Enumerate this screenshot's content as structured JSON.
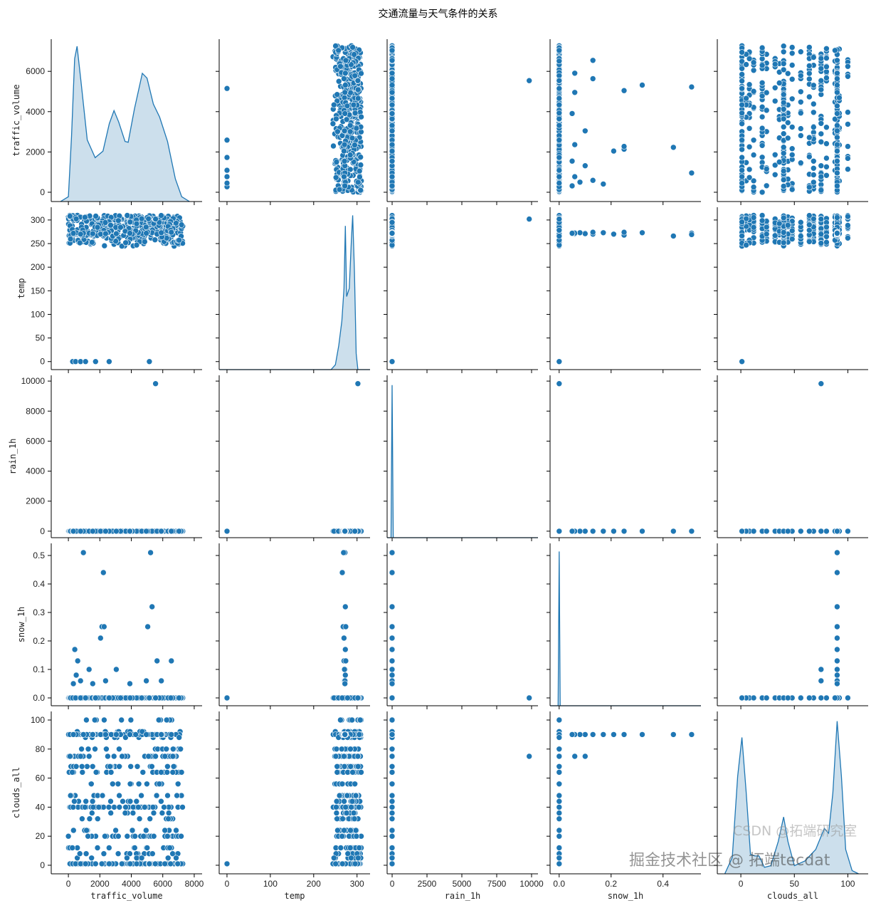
{
  "chart_data": {
    "type": "scatter",
    "title": "交通流量与天气条件的关系",
    "kind": "pairplot",
    "color": "#1f77b4",
    "kde_fill": "#c6dbea",
    "variables": [
      {
        "name": "traffic_volume",
        "lim": [
          -1090,
          8500
        ],
        "ylim": [
          -461,
          7597
        ],
        "xticks": [
          0,
          2000,
          4000,
          6000,
          8000
        ],
        "yticks": [
          0,
          2000,
          4000,
          6000
        ],
        "xtick_labels": [
          "0",
          "2000",
          "4000",
          "6000",
          "8000"
        ],
        "ytick_labels": [
          "0",
          "2000",
          "4000",
          "6000"
        ]
      },
      {
        "name": "temp",
        "lim": [
          -18,
          330
        ],
        "ylim": [
          -17,
          327
        ],
        "xticks": [
          0,
          100,
          200,
          300
        ],
        "yticks": [
          0,
          50,
          100,
          150,
          200,
          250,
          300
        ],
        "xtick_labels": [
          "0",
          "100",
          "200",
          "300"
        ],
        "ytick_labels": [
          "0",
          "50",
          "100",
          "150",
          "200",
          "250",
          "300"
        ]
      },
      {
        "name": "rain_1h",
        "lim": [
          -359,
          10460
        ],
        "ylim": [
          -433,
          10385
        ],
        "xticks": [
          0,
          2500,
          5000,
          7500,
          10000
        ],
        "yticks": [
          0,
          2000,
          4000,
          6000,
          8000,
          10000
        ],
        "xtick_labels": [
          "0",
          "2500",
          "5000",
          "7500",
          "10000"
        ],
        "ytick_labels": [
          "0",
          "2000",
          "4000",
          "6000",
          "8000",
          "10000"
        ]
      },
      {
        "name": "snow_1h",
        "lim": [
          -0.035,
          0.546
        ],
        "ylim": [
          -0.0275,
          0.5425
        ],
        "xticks": [
          0,
          0.2,
          0.4
        ],
        "yticks": [
          0,
          0.1,
          0.2,
          0.3,
          0.4,
          0.5
        ],
        "xtick_labels": [
          "0.0",
          "0.2",
          "0.4"
        ],
        "ytick_labels": [
          "0.0",
          "0.1",
          "0.2",
          "0.3",
          "0.4",
          "0.5"
        ]
      },
      {
        "name": "clouds_all",
        "lim": [
          -22,
          119
        ],
        "ylim": [
          -5.9,
          105.9
        ],
        "xticks": [
          0,
          50,
          100
        ],
        "yticks": [
          0,
          20,
          40,
          60,
          80,
          100
        ],
        "xtick_labels": [
          "0",
          "50",
          "100"
        ],
        "ytick_labels": [
          "0",
          "20",
          "40",
          "60",
          "80",
          "100"
        ]
      }
    ],
    "bulk": {
      "count": 420,
      "traffic_volume": [
        0,
        7300
      ],
      "temp": [
        244,
        310
      ],
      "rain_1h": 0,
      "snow_1h": 0,
      "clouds_levels": [
        1,
        1,
        1,
        1,
        5,
        8,
        12,
        20,
        20,
        24,
        32,
        36,
        40,
        40,
        40,
        44,
        48,
        56,
        64,
        68,
        75,
        75,
        80,
        88,
        90,
        90,
        90,
        90,
        92,
        100
      ]
    },
    "outliers": [
      [
        273,
        0,
        0,
        0,
        1
      ],
      [
        455,
        0,
        0,
        0,
        1
      ],
      [
        773,
        0,
        0,
        0,
        1
      ],
      [
        1090,
        0,
        0,
        0,
        1
      ],
      [
        1727,
        0,
        0,
        0,
        1
      ],
      [
        2590,
        0,
        0,
        0,
        1
      ],
      [
        5150,
        0,
        0,
        0,
        1
      ],
      [
        5540,
        302,
        9831,
        0,
        75
      ],
      [
        955,
        272,
        0,
        0.51,
        90
      ],
      [
        5227,
        269,
        0,
        0.51,
        90
      ],
      [
        2227,
        266,
        0,
        0.44,
        90
      ],
      [
        5318,
        273,
        0,
        0.32,
        90
      ],
      [
        2136,
        271,
        0,
        0.25,
        90
      ],
      [
        2273,
        268,
        0,
        0.25,
        90
      ],
      [
        5045,
        274,
        0,
        0.25,
        90
      ],
      [
        2045,
        270,
        0,
        0.21,
        90
      ],
      [
        409,
        273,
        0,
        0.17,
        90
      ],
      [
        591,
        272,
        0,
        0.13,
        90
      ],
      [
        5636,
        270,
        0,
        0.13,
        90
      ],
      [
        6545,
        274,
        0,
        0.13,
        90
      ],
      [
        1318,
        272,
        0,
        0.1,
        75
      ],
      [
        3045,
        271,
        0,
        0.1,
        90
      ],
      [
        500,
        273,
        0,
        0.08,
        90
      ],
      [
        773,
        270,
        0,
        0.06,
        75
      ],
      [
        2364,
        271,
        0,
        0.06,
        90
      ],
      [
        5909,
        273,
        0,
        0.06,
        90
      ],
      [
        4955,
        272,
        0,
        0.06,
        90
      ],
      [
        318,
        272,
        0,
        0.05,
        90
      ],
      [
        1545,
        271,
        0,
        0.05,
        90
      ],
      [
        3909,
        272,
        0,
        0.05,
        90
      ]
    ],
    "kde": [
      [
        [
          -500,
          0
        ],
        [
          0,
          0.03
        ],
        [
          200,
          0.4
        ],
        [
          400,
          0.88
        ],
        [
          550,
          0.956
        ],
        [
          800,
          0.74
        ],
        [
          1200,
          0.38
        ],
        [
          1700,
          0.27
        ],
        [
          2200,
          0.31
        ],
        [
          2600,
          0.48
        ],
        [
          2900,
          0.56
        ],
        [
          3200,
          0.49
        ],
        [
          3600,
          0.37
        ],
        [
          3800,
          0.365
        ],
        [
          4200,
          0.57
        ],
        [
          4700,
          0.79
        ],
        [
          5000,
          0.76
        ],
        [
          5400,
          0.6
        ],
        [
          5800,
          0.52
        ],
        [
          6300,
          0.37
        ],
        [
          6800,
          0.14
        ],
        [
          7200,
          0.03
        ],
        [
          7700,
          0
        ]
      ],
      [
        [
          -18,
          0
        ],
        [
          240,
          0
        ],
        [
          250,
          0.03
        ],
        [
          258,
          0.15
        ],
        [
          265,
          0.3
        ],
        [
          270,
          0.5
        ],
        [
          273,
          0.885
        ],
        [
          276,
          0.45
        ],
        [
          282,
          0.5
        ],
        [
          287,
          0.8
        ],
        [
          290,
          0.95
        ],
        [
          294,
          0.6
        ],
        [
          298,
          0.1
        ],
        [
          302,
          0
        ],
        [
          330,
          0
        ]
      ],
      [
        [
          -359,
          0
        ],
        [
          -80,
          0
        ],
        [
          0,
          0.94
        ],
        [
          80,
          0
        ],
        [
          10460,
          0
        ]
      ],
      [
        [
          -0.035,
          0
        ],
        [
          -0.004,
          0
        ],
        [
          0,
          0.95
        ],
        [
          0.004,
          0
        ],
        [
          0.546,
          0
        ]
      ],
      [
        [
          -15,
          0
        ],
        [
          -8,
          0.1
        ],
        [
          -3,
          0.6
        ],
        [
          1,
          0.84
        ],
        [
          5,
          0.5
        ],
        [
          9,
          0.12
        ],
        [
          13,
          0.11
        ],
        [
          17,
          0.11
        ],
        [
          22,
          0.04
        ],
        [
          28,
          0.05
        ],
        [
          35,
          0.2
        ],
        [
          40,
          0.35
        ],
        [
          44,
          0.2
        ],
        [
          50,
          0.05
        ],
        [
          60,
          0.08
        ],
        [
          70,
          0.15
        ],
        [
          78,
          0.28
        ],
        [
          82,
          0.25
        ],
        [
          86,
          0.5
        ],
        [
          90,
          0.94
        ],
        [
          94,
          0.6
        ],
        [
          98,
          0.15
        ],
        [
          104,
          0.02
        ],
        [
          110,
          0
        ]
      ]
    ]
  },
  "watermarks": {
    "juejin": "掘金技术社区 @ 拓端tecdat",
    "csdn": "CSDN @拓端研究室"
  }
}
